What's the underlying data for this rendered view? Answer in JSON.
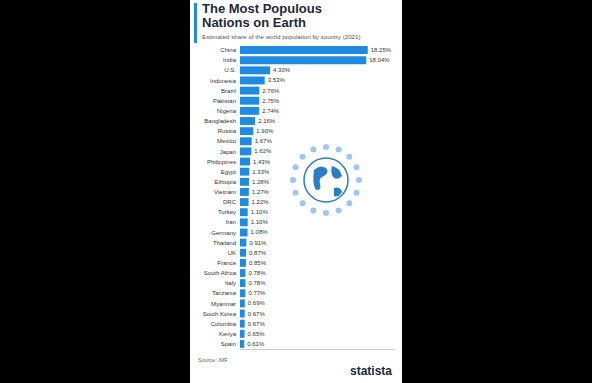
{
  "chart_data": {
    "type": "bar",
    "orientation": "horizontal",
    "title": "The Most Populous Nations on Earth",
    "subtitle": "Estimated share of the world population by country (2021)",
    "source": "Source: IMF",
    "brand": "statista",
    "categories": [
      "China",
      "India",
      "U.S.",
      "Indonesia",
      "Brazil",
      "Pakistan",
      "Nigeria",
      "Bangladesh",
      "Russia",
      "Mexico",
      "Japan",
      "Philippines",
      "Egypt",
      "Ethiopia",
      "Vietnam",
      "DRC",
      "Turkey",
      "Iran",
      "Germany",
      "Thailand",
      "UK",
      "France",
      "South Africa",
      "Italy",
      "Tanzania",
      "Myanmar",
      "South Korea",
      "Colombia",
      "Kenya",
      "Spain"
    ],
    "values": [
      18.25,
      18.04,
      4.3,
      3.53,
      2.76,
      2.75,
      2.74,
      2.16,
      1.9,
      1.67,
      1.62,
      1.43,
      1.33,
      1.28,
      1.27,
      1.22,
      1.1,
      1.1,
      1.08,
      0.91,
      0.87,
      0.85,
      0.78,
      0.78,
      0.77,
      0.69,
      0.67,
      0.67,
      0.65,
      0.61
    ],
    "value_labels": [
      "18.25%",
      "18.04%",
      "4.30%",
      "3.53%",
      "2.76%",
      "2.75%",
      "2.74%",
      "2.16%",
      "1.90%",
      "1.67%",
      "1.62%",
      "1.43%",
      "1.33%",
      "1.28%",
      "1.27%",
      "1.22%",
      "1.10%",
      "1.10%",
      "1.08%",
      "0.91%",
      "0.87%",
      "0.85%",
      "0.78%",
      "0.78%",
      "0.77%",
      "0.69%",
      "0.67%",
      "0.67%",
      "0.65%",
      "0.61%"
    ],
    "color": "#1f8be0",
    "xlim": [
      0,
      22
    ],
    "xticks": [],
    "grid": false,
    "data_labels": true,
    "tick_labels": "y"
  }
}
